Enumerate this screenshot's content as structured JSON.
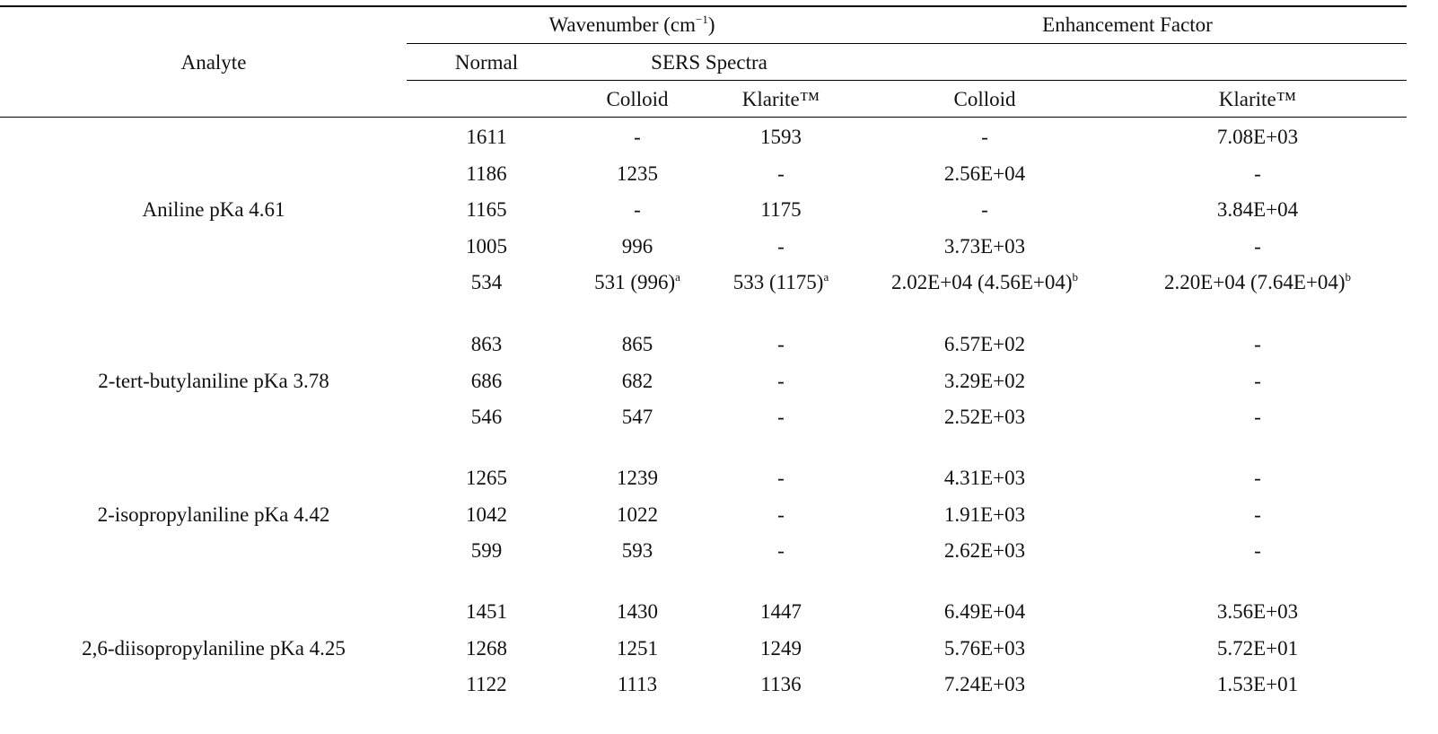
{
  "header": {
    "analyte": "Analyte",
    "wavenumber": "Wavenumber (cm",
    "wavenumber_sup": "−1",
    "wavenumber_close": ")",
    "enhancement_factor": "Enhancement Factor",
    "normal": "Normal",
    "sers_spectra": "SERS Spectra",
    "colloid": "Colloid",
    "klarite": "Klarite™",
    "ef_colloid": "Colloid",
    "ef_klarite": "Klarite™"
  },
  "groups": [
    {
      "analyte": "Aniline pKa 4.61",
      "rows": [
        {
          "normal": "1611",
          "sers_colloid": "-",
          "sers_klarite": "1593",
          "ef_colloid": "-",
          "ef_klarite": "7.08E+03"
        },
        {
          "normal": "1186",
          "sers_colloid": "1235",
          "sers_klarite": "-",
          "ef_colloid": "2.56E+04",
          "ef_klarite": "-"
        },
        {
          "normal": "1165",
          "sers_colloid": "-",
          "sers_klarite": "1175",
          "ef_colloid": "-",
          "ef_klarite": "3.84E+04"
        },
        {
          "normal": "1005",
          "sers_colloid": "996",
          "sers_klarite": "-",
          "ef_colloid": "3.73E+03",
          "ef_klarite": "-"
        },
        {
          "normal": "534",
          "sers_colloid": "531 (996)",
          "sers_colloid_sup": "a",
          "sers_klarite": "533 (1175)",
          "sers_klarite_sup": "a",
          "ef_colloid": "2.02E+04 (4.56E+04)",
          "ef_colloid_sup": "b",
          "ef_klarite": "2.20E+04 (7.64E+04)",
          "ef_klarite_sup": "b"
        }
      ]
    },
    {
      "analyte": "2-tert-butylaniline pKa 3.78",
      "rows": [
        {
          "normal": "863",
          "sers_colloid": "865",
          "sers_klarite": "-",
          "ef_colloid": "6.57E+02",
          "ef_klarite": "-"
        },
        {
          "normal": "686",
          "sers_colloid": "682",
          "sers_klarite": "-",
          "ef_colloid": "3.29E+02",
          "ef_klarite": "-"
        },
        {
          "normal": "546",
          "sers_colloid": "547",
          "sers_klarite": "-",
          "ef_colloid": "2.52E+03",
          "ef_klarite": "-"
        }
      ]
    },
    {
      "analyte": "2-isopropylaniline pKa 4.42",
      "rows": [
        {
          "normal": "1265",
          "sers_colloid": "1239",
          "sers_klarite": "-",
          "ef_colloid": "4.31E+03",
          "ef_klarite": "-"
        },
        {
          "normal": "1042",
          "sers_colloid": "1022",
          "sers_klarite": "-",
          "ef_colloid": "1.91E+03",
          "ef_klarite": "-"
        },
        {
          "normal": "599",
          "sers_colloid": "593",
          "sers_klarite": "-",
          "ef_colloid": "2.62E+03",
          "ef_klarite": "-"
        }
      ]
    },
    {
      "analyte": "2,6-diisopropylaniline pKa 4.25",
      "rows": [
        {
          "normal": "1451",
          "sers_colloid": "1430",
          "sers_klarite": "1447",
          "ef_colloid": "6.49E+04",
          "ef_klarite": "3.56E+03"
        },
        {
          "normal": "1268",
          "sers_colloid": "1251",
          "sers_klarite": "1249",
          "ef_colloid": "5.76E+03",
          "ef_klarite": "5.72E+01"
        },
        {
          "normal": "1122",
          "sers_colloid": "1113",
          "sers_klarite": "1136",
          "ef_colloid": "7.24E+03",
          "ef_klarite": "1.53E+01"
        }
      ]
    }
  ]
}
